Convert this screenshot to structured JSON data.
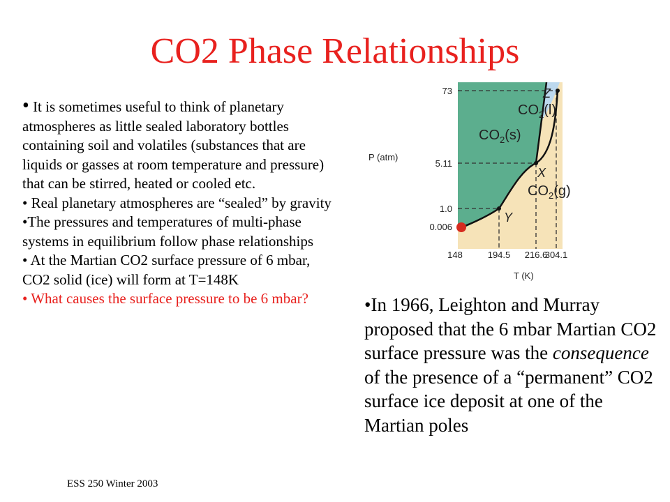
{
  "slide": {
    "title": "CO2 Phase Relationships",
    "footer": "ESS 250 Winter 2003"
  },
  "left_bullets": [
    {
      "lead": "•",
      "text": " It is sometimes useful to think of planetary atmospheres as little sealed laboratory bottles containing soil and volatiles (substances that are liquids or gasses at room temperature and pressure) that can be stirred, heated  or cooled etc."
    },
    {
      "lead": "•",
      "text": " Real planetary atmospheres are “sealed” by gravity"
    },
    {
      "lead": "•",
      "text": "The pressures and temperatures of multi-phase systems in equilibrium follow phase relationships"
    },
    {
      "lead": "•",
      "text": " At the Martian CO2 surface pressure of 6 mbar, CO2 solid (ice) will form at T=148K"
    },
    {
      "lead": "•",
      "text": " What causes the surface pressure to be 6 mbar?"
    }
  ],
  "right_bullet": {
    "pre": "•In 1966, Leighton and Murray proposed that the 6 mbar Martian CO2 surface pressure was the ",
    "emph": "consequence",
    "post": " of the presence of a “permanent” CO2 surface ice deposit at one of the Martian poles"
  },
  "diagram": {
    "y_axis_label": "P (atm)",
    "x_axis_label": "T (K)",
    "y_ticks": [
      "73",
      "5.11",
      "1.0",
      "0.006"
    ],
    "x_ticks": [
      "148",
      "194.5",
      "216.6",
      "304.1"
    ],
    "phases": {
      "solid": {
        "base": "CO",
        "sub": "2",
        "suffix": "(s)"
      },
      "liquid": {
        "base": "CO",
        "sub": "2",
        "suffix": "(l)"
      },
      "gas": {
        "base": "CO",
        "sub": "2",
        "suffix": "(g)"
      }
    },
    "points": {
      "critical": "Z",
      "triple": "X",
      "normal": "Y"
    },
    "colors": {
      "solid": "#5cae8e",
      "liquid": "#bcd8ee",
      "gas": "#f6e3b8",
      "marker": "#d62b1f",
      "title": "#e8211e"
    }
  }
}
